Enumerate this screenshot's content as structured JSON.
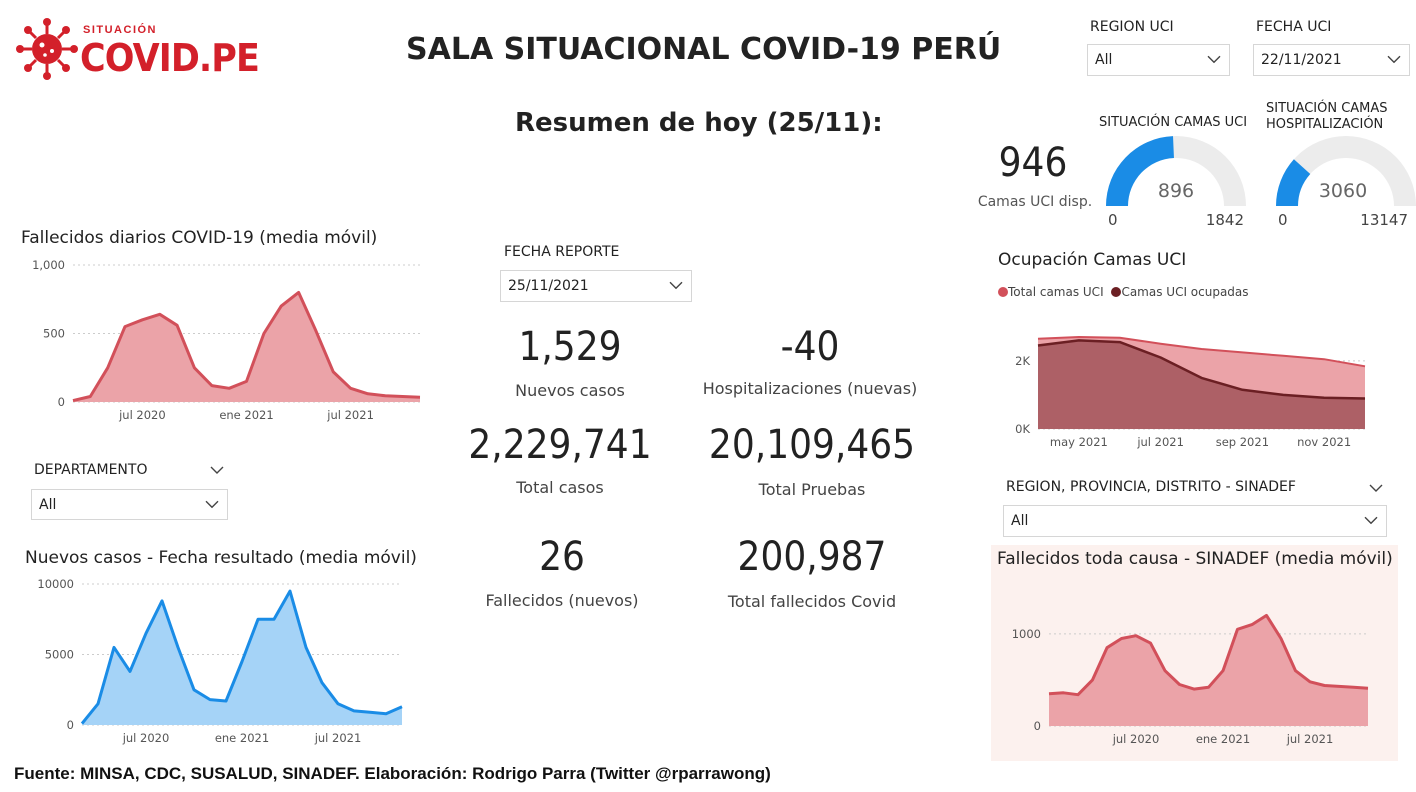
{
  "header": {
    "logo_small": "SITUACIÓN",
    "logo_big": "COVID.PE",
    "title": "SALA SITUACIONAL COVID-19 PERÚ",
    "subtitle": "Resumen de hoy (25/11):"
  },
  "filters": {
    "region_uci": {
      "label": "REGION UCI",
      "value": "All"
    },
    "fecha_uci": {
      "label": "FECHA UCI",
      "value": "22/11/2021"
    },
    "fecha_reporte": {
      "label": "FECHA REPORTE",
      "value": "25/11/2021"
    },
    "departamento": {
      "label": "DEPARTAMENTO",
      "value": "All"
    },
    "region_sinadef": {
      "label": "REGION, PROVINCIA, DISTRITO - SINADEF",
      "value": "All"
    }
  },
  "kpis": [
    {
      "value": "1,529",
      "label": "Nuevos casos"
    },
    {
      "value": "-40",
      "label": "Hospitalizaciones (nuevas)"
    },
    {
      "value": "2,229,741",
      "label": "Total casos"
    },
    {
      "value": "20,109,465",
      "label": "Total Pruebas"
    },
    {
      "value": "26",
      "label": "Fallecidos (nuevos)"
    },
    {
      "value": "200,987",
      "label": "Total fallecidos Covid"
    }
  ],
  "uci": {
    "camas_disp": "946",
    "camas_disp_label": "Camas UCI disp.",
    "gauge_uci": {
      "title": "SITUACIÓN CAMAS UCI",
      "value": 896,
      "min": 0,
      "max": 1842,
      "value_label": "896",
      "min_label": "0",
      "max_label": "1842"
    },
    "gauge_hosp": {
      "title": "SITUACIÓN CAMAS HOSPITALIZACIÓN",
      "value": 3060,
      "min": 0,
      "max": 13147,
      "value_label": "3060",
      "min_label": "0",
      "max_label": "13147"
    }
  },
  "colors": {
    "red": "#d2505a",
    "red_fill": "#eba3a8",
    "blue": "#1a8ce6",
    "blue_fill": "#a5d3f7",
    "darkred": "#6b1f23",
    "gauge_bg": "#ececec",
    "panel_bg": "#fcf1ee"
  },
  "chart_data": [
    {
      "id": "fallecidos",
      "type": "area",
      "title": "Fallecidos diarios COVID-19 (media móvil)",
      "x": [
        "2020-03",
        "2020-04",
        "2020-05",
        "2020-06",
        "2020-07",
        "2020-08",
        "2020-09",
        "2020-10",
        "2020-11",
        "2020-12",
        "2021-01",
        "2021-02",
        "2021-03",
        "2021-04",
        "2021-05",
        "2021-06",
        "2021-07",
        "2021-08",
        "2021-09",
        "2021-10",
        "2021-11"
      ],
      "values": [
        10,
        40,
        250,
        550,
        600,
        640,
        560,
        250,
        120,
        100,
        150,
        500,
        700,
        800,
        520,
        220,
        100,
        60,
        45,
        40,
        35
      ],
      "ylim": [
        0,
        1000
      ],
      "yticks": [
        {
          "v": 0,
          "label": "0"
        },
        {
          "v": 500,
          "label": "500"
        },
        {
          "v": 1000,
          "label": "1,000"
        }
      ],
      "xticks": [
        {
          "at": 4,
          "label": "jul 2020"
        },
        {
          "at": 10,
          "label": "ene 2021"
        },
        {
          "at": 16,
          "label": "jul 2021"
        }
      ]
    },
    {
      "id": "casos",
      "type": "area",
      "title": "Nuevos casos - Fecha resultado (media móvil)",
      "x": [
        "2020-03",
        "2020-04",
        "2020-05",
        "2020-06",
        "2020-07",
        "2020-08",
        "2020-09",
        "2020-10",
        "2020-11",
        "2020-12",
        "2021-01",
        "2021-02",
        "2021-03",
        "2021-04",
        "2021-05",
        "2021-06",
        "2021-07",
        "2021-08",
        "2021-09",
        "2021-10",
        "2021-11"
      ],
      "values": [
        100,
        1500,
        5500,
        3800,
        6500,
        8800,
        5500,
        2500,
        1800,
        1700,
        4500,
        7500,
        7500,
        9500,
        5500,
        3000,
        1500,
        1000,
        900,
        800,
        1300
      ],
      "ylim": [
        0,
        10000
      ],
      "yticks": [
        {
          "v": 0,
          "label": "0"
        },
        {
          "v": 5000,
          "label": "5000"
        },
        {
          "v": 10000,
          "label": "10000"
        }
      ],
      "xticks": [
        {
          "at": 4,
          "label": "jul 2020"
        },
        {
          "at": 10,
          "label": "ene 2021"
        },
        {
          "at": 16,
          "label": "jul 2021"
        }
      ]
    },
    {
      "id": "ocupacion",
      "type": "area",
      "title": "Ocupación Camas UCI",
      "legend": [
        "Total camas UCI",
        "Camas UCI ocupadas"
      ],
      "x": [
        "2021-04-01",
        "2021-05-01",
        "2021-06-01",
        "2021-07-01",
        "2021-08-01",
        "2021-09-01",
        "2021-10-01",
        "2021-11-01",
        "2021-11-22"
      ],
      "series": [
        {
          "name": "Total camas UCI",
          "values": [
            2650,
            2700,
            2680,
            2500,
            2350,
            2250,
            2150,
            2050,
            1842
          ]
        },
        {
          "name": "Camas UCI ocupadas",
          "values": [
            2450,
            2600,
            2550,
            2100,
            1500,
            1150,
            1000,
            920,
            896
          ]
        }
      ],
      "ylim": [
        0,
        3200
      ],
      "yticks": [
        {
          "v": 0,
          "label": "0K"
        },
        {
          "v": 2000,
          "label": "2K"
        }
      ],
      "xticks": [
        {
          "at": 1,
          "label": "may 2021"
        },
        {
          "at": 3,
          "label": "jul 2021"
        },
        {
          "at": 5,
          "label": "sep 2021"
        },
        {
          "at": 7,
          "label": "nov 2021"
        }
      ]
    },
    {
      "id": "sinadef",
      "type": "area",
      "title": "Fallecidos toda causa - SINADEF (media móvil)",
      "x": [
        "2020-01",
        "2020-02",
        "2020-03",
        "2020-04",
        "2020-05",
        "2020-06",
        "2020-07",
        "2020-08",
        "2020-09",
        "2020-10",
        "2020-11",
        "2020-12",
        "2021-01",
        "2021-02",
        "2021-03",
        "2021-04",
        "2021-05",
        "2021-06",
        "2021-07",
        "2021-08",
        "2021-09",
        "2021-10",
        "2021-11"
      ],
      "values": [
        350,
        360,
        340,
        500,
        850,
        950,
        980,
        900,
        600,
        450,
        400,
        420,
        600,
        1050,
        1100,
        1200,
        950,
        600,
        480,
        440,
        430,
        420,
        410
      ],
      "ylim": [
        0,
        1400
      ],
      "yticks": [
        {
          "v": 0,
          "label": "0"
        },
        {
          "v": 1000,
          "label": "1000"
        }
      ],
      "xticks": [
        {
          "at": 6,
          "label": "jul 2020"
        },
        {
          "at": 12,
          "label": "ene 2021"
        },
        {
          "at": 18,
          "label": "jul 2021"
        }
      ]
    }
  ],
  "footer": "Fuente: MINSA, CDC, SUSALUD, SINADEF. Elaboración: Rodrigo Parra (Twitter @rparrawong)"
}
